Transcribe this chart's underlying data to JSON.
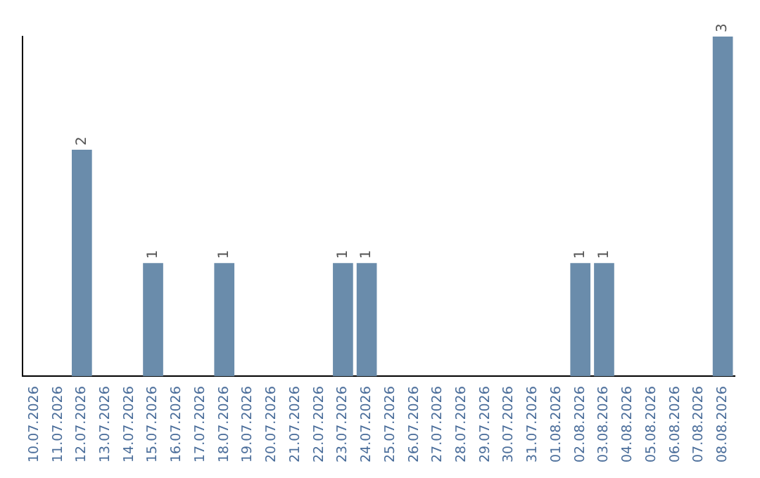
{
  "chart_data": {
    "type": "bar",
    "categories": [
      "10.07.2026",
      "11.07.2026",
      "12.07.2026",
      "13.07.2026",
      "14.07.2026",
      "15.07.2026",
      "16.07.2026",
      "17.07.2026",
      "18.07.2026",
      "19.07.2026",
      "20.07.2026",
      "21.07.2026",
      "22.07.2026",
      "23.07.2026",
      "24.07.2026",
      "25.07.2026",
      "26.07.2026",
      "27.07.2026",
      "28.07.2026",
      "29.07.2026",
      "30.07.2026",
      "31.07.2026",
      "01.08.2026",
      "02.08.2026",
      "03.08.2026",
      "04.08.2026",
      "05.08.2026",
      "06.08.2026",
      "07.08.2026",
      "08.08.2026"
    ],
    "values": [
      0,
      0,
      2,
      0,
      0,
      1,
      0,
      0,
      1,
      0,
      0,
      0,
      0,
      1,
      1,
      0,
      0,
      0,
      0,
      0,
      0,
      0,
      0,
      1,
      1,
      0,
      0,
      0,
      0,
      3
    ],
    "value_labels": [
      null,
      null,
      "2",
      null,
      null,
      "1",
      null,
      null,
      "1",
      null,
      null,
      null,
      null,
      "1",
      "1",
      null,
      null,
      null,
      null,
      null,
      null,
      null,
      null,
      "1",
      "1",
      null,
      null,
      null,
      null,
      "3"
    ],
    "color": "#6a8cab",
    "grid": false,
    "legend": false
  }
}
